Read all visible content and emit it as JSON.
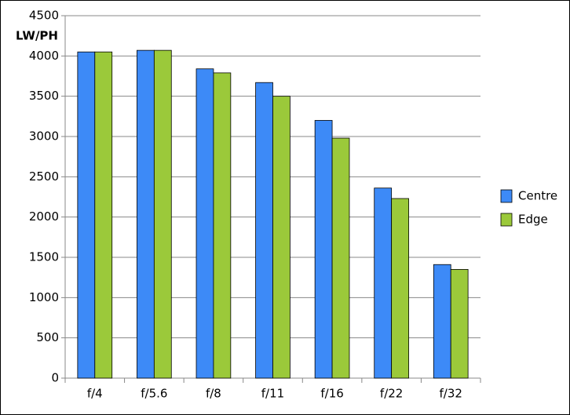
{
  "chart_data": {
    "type": "bar",
    "y_label": "LW/PH",
    "categories": [
      "f/4",
      "f/5.6",
      "f/8",
      "f/11",
      "f/16",
      "f/22",
      "f/32"
    ],
    "series": [
      {
        "name": "Centre",
        "color": "#3d8af7",
        "values": [
          4050,
          4070,
          3840,
          3670,
          3200,
          2360,
          1410
        ]
      },
      {
        "name": "Edge",
        "color": "#9bc93a",
        "values": [
          4050,
          4070,
          3790,
          3500,
          2980,
          2230,
          1350
        ]
      }
    ],
    "ylim": [
      0,
      4500
    ],
    "yticks": [
      0,
      500,
      1000,
      1500,
      2000,
      2500,
      3000,
      3500,
      4000,
      4500
    ],
    "grid": true,
    "legend": "right"
  }
}
